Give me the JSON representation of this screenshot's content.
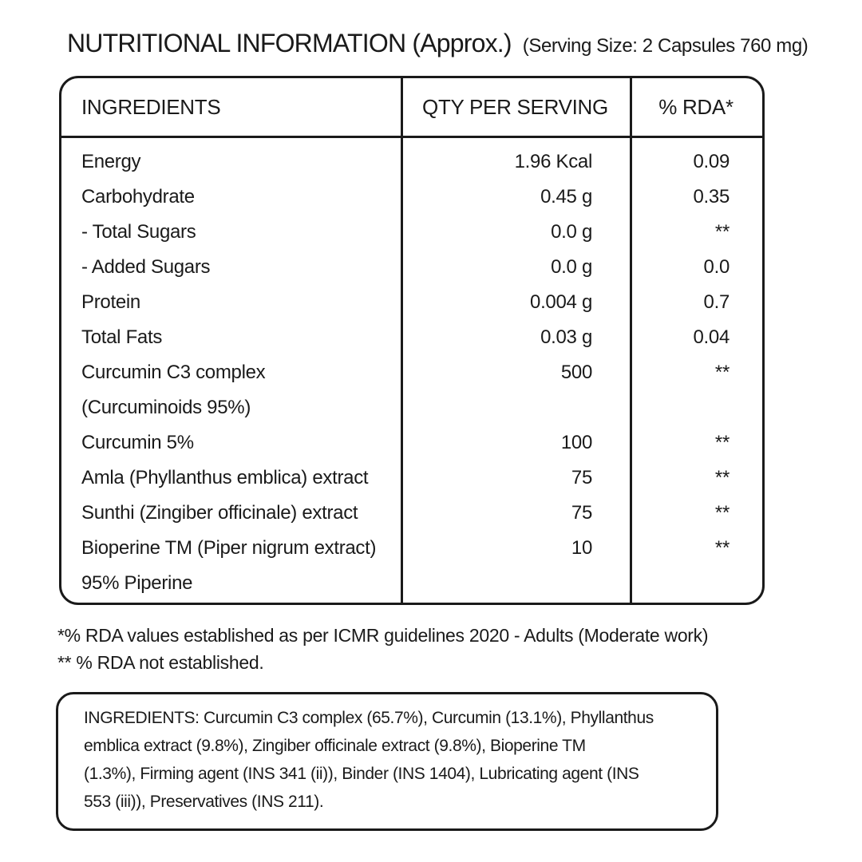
{
  "title": {
    "main": "NUTRITIONAL INFORMATION (Approx.)",
    "serving": "(Serving Size: 2 Capsules 760 mg)"
  },
  "table": {
    "headers": [
      "INGREDIENTS",
      "QTY PER SERVING",
      "% RDA*"
    ],
    "rows": [
      {
        "name": "Energy",
        "qty": "1.96 Kcal",
        "rda": "0.09"
      },
      {
        "name": "Carbohydrate",
        "qty": "0.45 g",
        "rda": "0.35"
      },
      {
        "name": "- Total Sugars",
        "qty": "0.0 g",
        "rda": "**"
      },
      {
        "name": "- Added Sugars",
        "qty": "0.0 g",
        "rda": "0.0"
      },
      {
        "name": "Protein",
        "qty": "0.004 g",
        "rda": "0.7"
      },
      {
        "name": "Total Fats",
        "qty": "0.03 g",
        "rda": "0.04"
      },
      {
        "name": "Curcumin C3 complex",
        "qty": "500",
        "rda": "**"
      },
      {
        "name": "(Curcuminoids 95%)",
        "qty": "",
        "rda": ""
      },
      {
        "name": "Curcumin 5%",
        "qty": "100",
        "rda": "**"
      },
      {
        "name": "Amla (Phyllanthus emblica) extract",
        "qty": "75",
        "rda": "**"
      },
      {
        "name": "Sunthi (Zingiber officinale) extract",
        "qty": "75",
        "rda": "**"
      },
      {
        "name": "Bioperine TM (Piper nigrum extract)",
        "qty": "10",
        "rda": "**"
      },
      {
        "name": "95% Piperine",
        "qty": "",
        "rda": ""
      }
    ]
  },
  "footnotes": {
    "line1": "*% RDA values established as per ICMR guidelines 2020 - Adults (Moderate work)",
    "line2": "** % RDA not established."
  },
  "ingredients_box": {
    "lines": [
      "INGREDIENTS: Curcumin C3 complex (65.7%), Curcumin (13.1%), Phyllanthus",
      "emblica extract (9.8%), Zingiber officinale extract (9.8%), Bioperine TM",
      "(1.3%), Firming agent (INS 341 (ii)), Binder (INS 1404), Lubricating agent (INS",
      "553 (iii)), Preservatives (INS 211)."
    ]
  },
  "colors": {
    "text": "#1a1a1a",
    "border": "#1a1a1a",
    "background": "#ffffff"
  }
}
